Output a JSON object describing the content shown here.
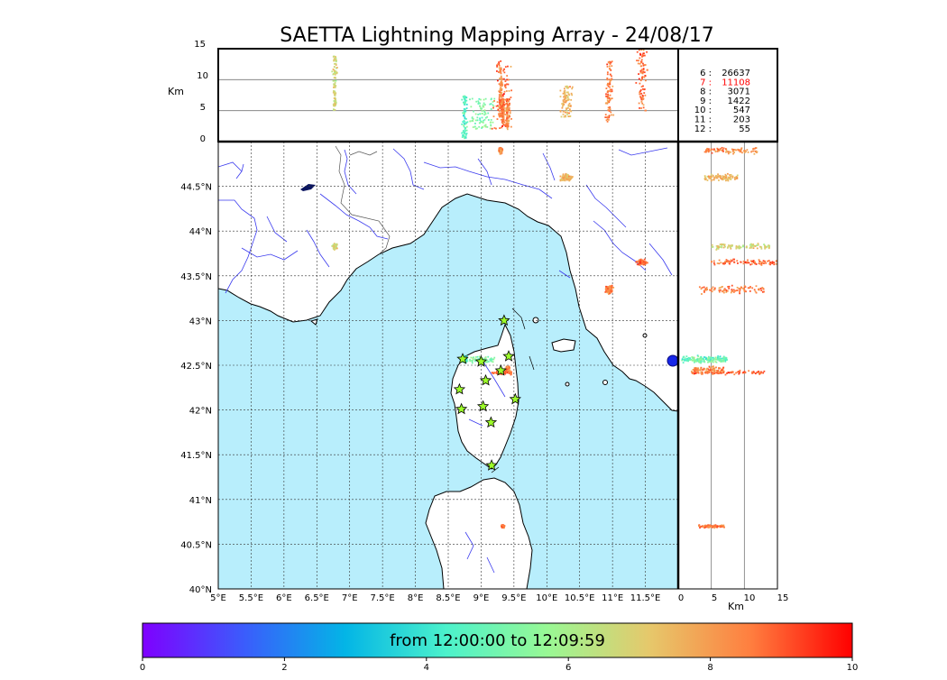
{
  "title": "SAETTA Lightning Mapping Array - 24/08/17",
  "altitude_axis": {
    "unit": "Km",
    "ticks": [
      "15",
      "10",
      "5",
      "0"
    ],
    "range": [
      0,
      15
    ]
  },
  "map": {
    "lon_range": [
      5,
      12
    ],
    "lat_range": [
      40,
      45
    ],
    "lon_labels": [
      "5°E",
      "5.5°E",
      "6°E",
      "6.5°E",
      "7°E",
      "7.5°E",
      "8°E",
      "8.5°E",
      "9°E",
      "9.5°E",
      "10°E",
      "10.5°E",
      "11°E",
      "11.5°E"
    ],
    "lat_labels": [
      "44.5°N",
      "44°N",
      "43.5°N",
      "43°N",
      "42.5°N",
      "42°N",
      "41.5°N",
      "41°N",
      "40.5°N",
      "40°N"
    ],
    "sea_color": "#b8eefc",
    "land_color": "#ffffff",
    "river_color": "#3a3aee",
    "coast_color": "#000000",
    "grid_style": "dashed",
    "station_icon": "star-icon",
    "station_color": "#9dfc2a",
    "stations": [
      {
        "lon": 9.35,
        "lat": 43.0
      },
      {
        "lon": 8.72,
        "lat": 42.57
      },
      {
        "lon": 9.0,
        "lat": 42.54
      },
      {
        "lon": 9.42,
        "lat": 42.6
      },
      {
        "lon": 9.3,
        "lat": 42.44
      },
      {
        "lon": 9.07,
        "lat": 42.33
      },
      {
        "lon": 8.67,
        "lat": 42.23
      },
      {
        "lon": 9.52,
        "lat": 42.12
      },
      {
        "lon": 9.03,
        "lat": 42.04
      },
      {
        "lon": 8.7,
        "lat": 42.01
      },
      {
        "lon": 9.15,
        "lat": 41.86
      },
      {
        "lon": 9.16,
        "lat": 41.38
      }
    ]
  },
  "right_panel": {
    "unit": "Km",
    "ticks": [
      "0",
      "5",
      "10",
      "15"
    ],
    "range": [
      0,
      15
    ]
  },
  "stats": [
    {
      "stations": "6",
      "count": "26637",
      "color": "#000000"
    },
    {
      "stations": "7",
      "count": "11108",
      "color": "#ff0000"
    },
    {
      "stations": "8",
      "count": "3071",
      "color": "#000000"
    },
    {
      "stations": "9",
      "count": "1422",
      "color": "#000000"
    },
    {
      "stations": "10",
      "count": "547",
      "color": "#000000"
    },
    {
      "stations": "11",
      "count": "203",
      "color": "#000000"
    },
    {
      "stations": "12",
      "count": "55",
      "color": "#000000"
    }
  ],
  "colorbar": {
    "label": "from 12:00:00 to 12:09:59",
    "ticks": [
      "0",
      "2",
      "4",
      "6",
      "8",
      "10"
    ],
    "range": [
      0,
      10
    ],
    "colormap": "rainbow",
    "colormap_colors": [
      "#7f00ff",
      "#3b5cfc",
      "#03b5e6",
      "#4cf2cb",
      "#99f894",
      "#e6c86b",
      "#ff7e3f",
      "#ff0000"
    ]
  },
  "chart_data": {
    "type": "scatter",
    "title": "SAETTA Lightning Mapping Array - 24/08/17",
    "xlabel": "",
    "ylabel": "",
    "clusters": [
      {
        "lon": 6.77,
        "lat": 43.83,
        "alt_range": [
          5,
          14
        ],
        "time_minutes": 6.8,
        "spread_lon": 0.05,
        "spread_lat": 0.04
      },
      {
        "lon": 8.75,
        "lat": 42.57,
        "alt_range": [
          0.5,
          7.5
        ],
        "time_minutes": 4.5,
        "spread_lon": 0.05,
        "spread_lat": 0.05
      },
      {
        "lon": 9.0,
        "lat": 42.56,
        "alt_range": [
          2,
          7
        ],
        "time_minutes": 5.2,
        "spread_lon": 0.28,
        "spread_lat": 0.05
      },
      {
        "lon": 9.4,
        "lat": 42.45,
        "alt_range": [
          2,
          7
        ],
        "time_minutes": 8.4,
        "spread_lon": 0.05,
        "spread_lat": 0.05
      },
      {
        "lon": 9.33,
        "lat": 42.42,
        "alt_range": [
          2,
          13
        ],
        "time_minutes": 8.8,
        "spread_lon": 0.2,
        "spread_lat": 0.03
      },
      {
        "lon": 9.33,
        "lat": 40.7,
        "alt_range": [
          3,
          7
        ],
        "time_minutes": 8.6,
        "spread_lon": 0.03,
        "spread_lat": 0.02
      },
      {
        "lon": 10.3,
        "lat": 44.6,
        "alt_range": [
          4,
          9
        ],
        "time_minutes": 7.5,
        "spread_lon": 0.12,
        "spread_lat": 0.05
      },
      {
        "lon": 10.95,
        "lat": 43.35,
        "alt_range": [
          3,
          13
        ],
        "time_minutes": 8.6,
        "spread_lon": 0.08,
        "spread_lat": 0.06
      },
      {
        "lon": 11.45,
        "lat": 43.65,
        "alt_range": [
          5,
          15
        ],
        "time_minutes": 8.7,
        "spread_lon": 0.1,
        "spread_lat": 0.04
      },
      {
        "lon": 9.3,
        "lat": 44.9,
        "alt_range": [
          4,
          12
        ],
        "time_minutes": 8.3,
        "spread_lon": 0.04,
        "spread_lat": 0.05
      }
    ]
  }
}
